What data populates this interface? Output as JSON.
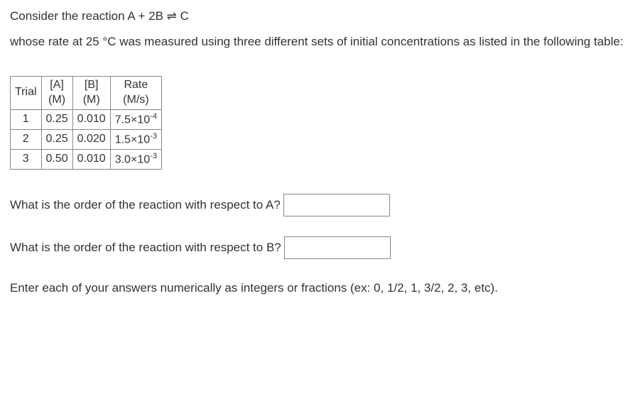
{
  "intro": {
    "line1": "Consider the reaction A + 2B ⇌ C",
    "line2": "whose rate at 25 °C was measured using three different sets of initial concentrations as listed in the following table:"
  },
  "table": {
    "headers": {
      "trial": "Trial",
      "a_top": "[A]",
      "a_bot": "(M)",
      "b_top": "[B]",
      "b_bot": "(M)",
      "rate_top": "Rate",
      "rate_bot": "(M/s)"
    },
    "rows": [
      {
        "trial": "1",
        "a": "0.25",
        "b": "0.010",
        "rate_m": "7.5×10",
        "rate_e": "-4"
      },
      {
        "trial": "2",
        "a": "0.25",
        "b": "0.020",
        "rate_m": "1.5×10",
        "rate_e": "-3"
      },
      {
        "trial": "3",
        "a": "0.50",
        "b": "0.010",
        "rate_m": "3.0×10",
        "rate_e": "-3"
      }
    ]
  },
  "questions": {
    "q1": "What is the order of the reaction with respect to A?",
    "q2": "What is the order of the reaction with respect to B?"
  },
  "instruction": "Enter each of your answers numerically as integers or fractions (ex: 0, 1/2, 1, 3/2, 2, 3, etc).",
  "answers": {
    "a": "",
    "b": ""
  }
}
